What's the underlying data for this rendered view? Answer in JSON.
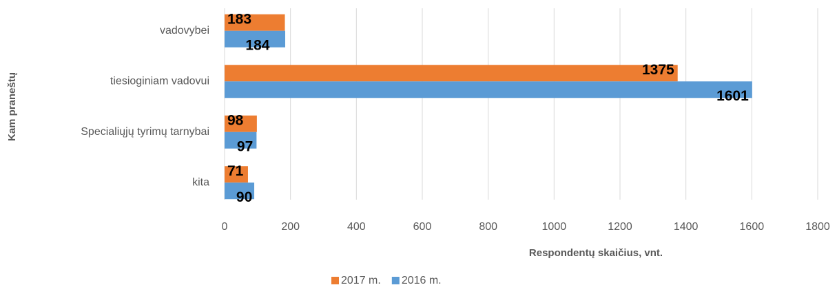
{
  "chart_data": {
    "type": "hbar",
    "categories": [
      "vadovybei",
      "tiesioginiam vadovui",
      "Specialiųjų tyrimų tarnybai",
      "kita"
    ],
    "series": [
      {
        "name": "2017 m.",
        "color": "#ed7d31",
        "values": [
          183,
          1375,
          98,
          71
        ]
      },
      {
        "name": "2016 m.",
        "color": "#5b9bd5",
        "values": [
          184,
          1601,
          97,
          90
        ]
      }
    ],
    "xlim": [
      0,
      1800
    ],
    "xticks": [
      0,
      200,
      400,
      600,
      800,
      1000,
      1200,
      1400,
      1600,
      1800
    ],
    "xlabel": "Respondentų skaičius, vnt.",
    "ylabel": "Kam praneštų",
    "grid": true,
    "legend": "bottom"
  }
}
